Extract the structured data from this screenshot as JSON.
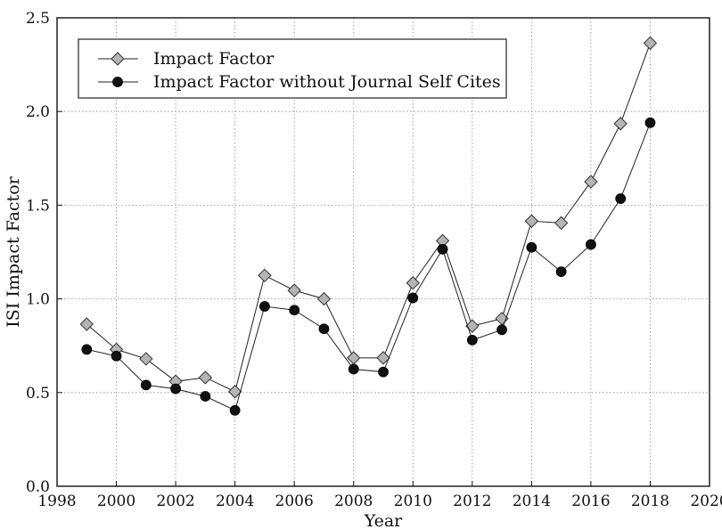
{
  "chart_data": {
    "type": "line",
    "xlabel": "Year",
    "ylabel": "ISI Impact Factor",
    "xlim": [
      1998,
      2020
    ],
    "ylim": [
      0.0,
      2.5
    ],
    "xticks": [
      1998,
      2000,
      2002,
      2004,
      2006,
      2008,
      2010,
      2012,
      2014,
      2016,
      2018,
      2020
    ],
    "yticks": [
      0.0,
      0.5,
      1.0,
      1.5,
      2.0,
      2.5
    ],
    "ytick_labels": [
      "0.0",
      "0.5",
      "1.0",
      "1.5",
      "2.0",
      "2.5"
    ],
    "grid": true,
    "legend_position": "top-left",
    "x": [
      1999,
      2000,
      2001,
      2002,
      2003,
      2004,
      2005,
      2006,
      2007,
      2008,
      2009,
      2010,
      2011,
      2012,
      2013,
      2014,
      2015,
      2016,
      2017,
      2018
    ],
    "series": [
      {
        "name": "Impact Factor",
        "marker": "diamond",
        "color": "#b4b4b4",
        "values": [
          0.865,
          0.73,
          0.68,
          0.56,
          0.58,
          0.505,
          1.125,
          1.045,
          1.0,
          0.685,
          0.685,
          1.085,
          1.31,
          0.855,
          0.895,
          1.415,
          1.405,
          1.625,
          1.935,
          2.365
        ]
      },
      {
        "name": "Impact Factor without Journal Self Cites",
        "marker": "circle",
        "color": "#111111",
        "values": [
          0.73,
          0.695,
          0.54,
          0.52,
          0.48,
          0.405,
          0.96,
          0.94,
          0.84,
          0.625,
          0.61,
          1.005,
          1.265,
          0.78,
          0.835,
          1.275,
          1.145,
          1.29,
          1.535,
          1.94
        ]
      }
    ]
  }
}
